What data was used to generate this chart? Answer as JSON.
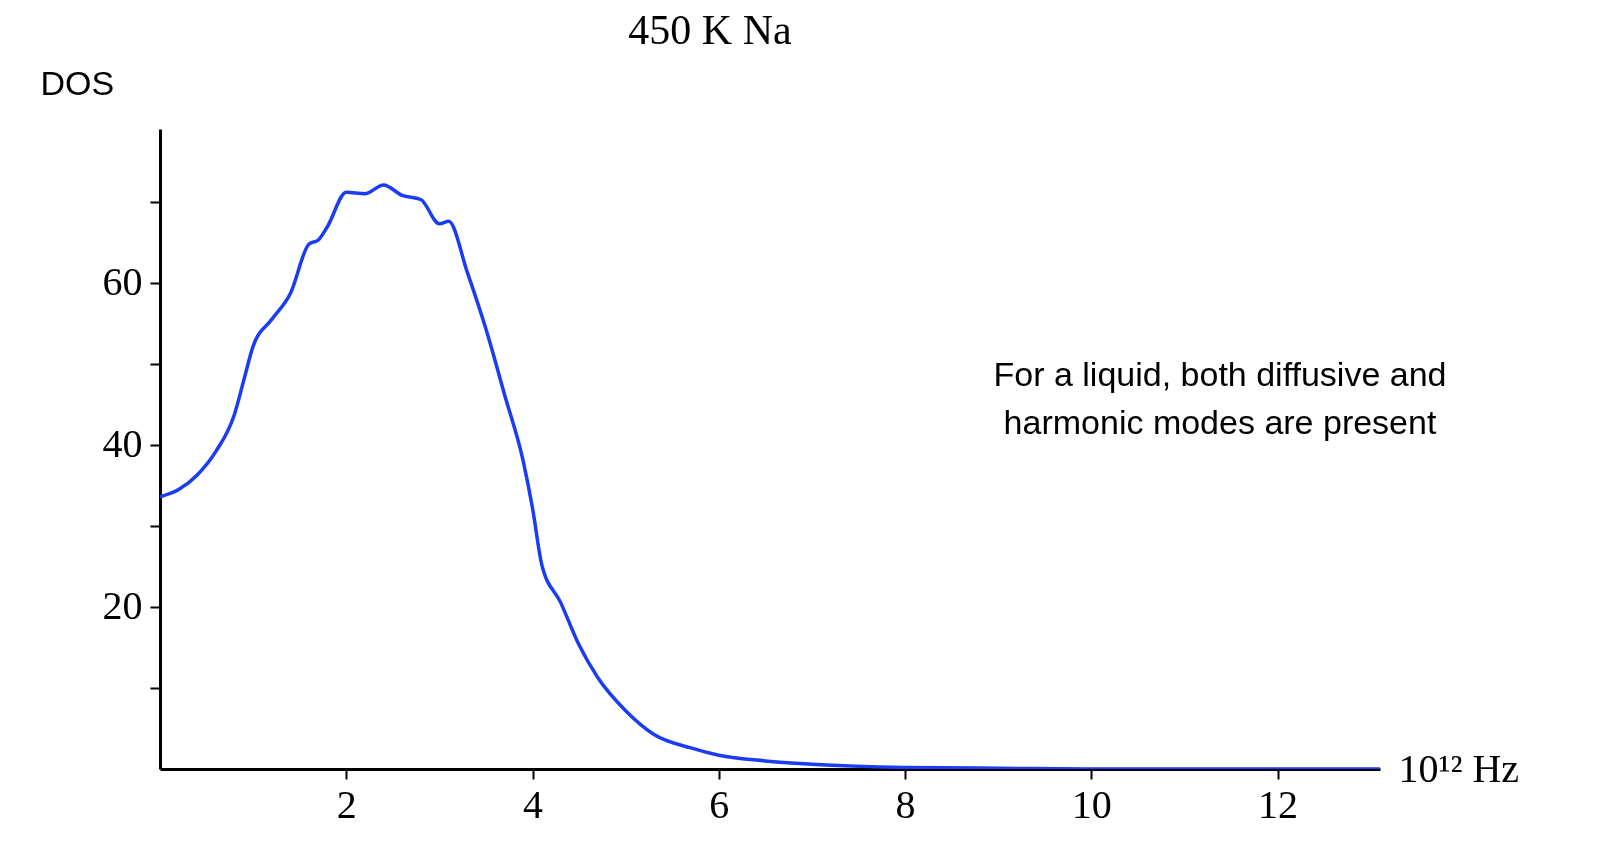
{
  "chart_data": {
    "type": "line",
    "title": "450 K    Na",
    "xlabel": "10¹² Hz",
    "ylabel": "DOS",
    "annotations": [
      "For a liquid, both diffusive and harmonic modes are present"
    ],
    "xlim": [
      0,
      13.1
    ],
    "ylim": [
      0,
      79
    ],
    "xticks": [
      2,
      4,
      6,
      8,
      10,
      12
    ],
    "yticks": [
      {
        "value": 10,
        "label": null
      },
      20,
      {
        "value": 30,
        "label": null
      },
      40,
      {
        "value": 50,
        "label": null
      },
      60,
      {
        "value": 70,
        "label": null
      }
    ],
    "grid": false,
    "marker": "none",
    "line_style": "solid",
    "series": [
      {
        "color": "#1a3cf5",
        "x": [
          0,
          0.2,
          0.4,
          0.6,
          0.8,
          0.9,
          1.0,
          1.2,
          1.4,
          1.6,
          1.7,
          1.8,
          2.0,
          2.2,
          2.4,
          2.6,
          2.8,
          3.0,
          3.1,
          3.3,
          3.5,
          3.7,
          3.9,
          4.0,
          4.1,
          4.3,
          4.5,
          4.7,
          5.0,
          5.3,
          5.7,
          6.0,
          6.5,
          7.0,
          8.0,
          9.0,
          10.0,
          11.0,
          12.0,
          13.1
        ],
        "values": [
          33.6,
          34.5,
          36.3,
          39.2,
          43.8,
          48,
          52.2,
          55.5,
          58.7,
          64.8,
          65.3,
          67,
          71.2,
          71,
          72.1,
          70.8,
          70.3,
          67.3,
          67.6,
          61.3,
          54.3,
          46.2,
          38,
          32.2,
          25.2,
          20.6,
          15.3,
          11.3,
          7.2,
          4.3,
          2.6,
          1.7,
          1.0,
          0.6,
          0.2,
          0.1,
          0,
          0,
          0,
          0
        ]
      }
    ]
  }
}
